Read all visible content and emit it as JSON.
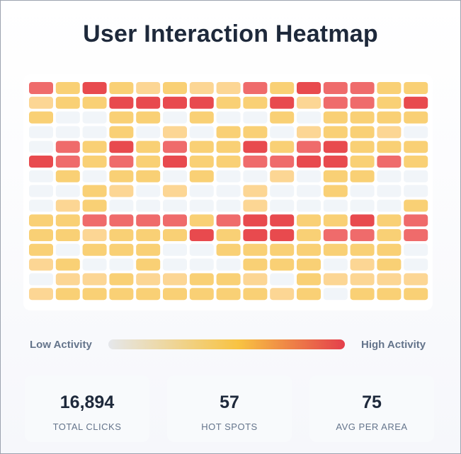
{
  "title": "User Interaction Heatmap",
  "colors": {
    "empty": "#f1f5f9",
    "low": "#fcd694",
    "mid": "#f9d075",
    "high": "#ef6b6b",
    "max": "#e84a4e",
    "legend_start": "#e5e7eb",
    "legend_mid": "#f8c342",
    "legend_end": "#e43f4c"
  },
  "legend": {
    "low_label": "Low Activity",
    "high_label": "High Activity"
  },
  "stats": [
    {
      "value": "16,894",
      "label": "TOTAL CLICKS"
    },
    {
      "value": "57",
      "label": "HOT SPOTS"
    },
    {
      "value": "75",
      "label": "AVG PER AREA"
    }
  ],
  "chart_data": {
    "type": "heatmap",
    "title": "User Interaction Heatmap",
    "rows": 15,
    "cols": 15,
    "scale": "0 = none, 1 = low, 2 = medium, 3 = high, 4 = very high",
    "values": [
      [
        3,
        2,
        4,
        2,
        1,
        2,
        1,
        1,
        3,
        2,
        4,
        3,
        3,
        2,
        2
      ],
      [
        1,
        2,
        2,
        4,
        4,
        4,
        4,
        2,
        2,
        4,
        1,
        3,
        3,
        2,
        4
      ],
      [
        2,
        0,
        0,
        2,
        2,
        0,
        2,
        0,
        0,
        2,
        0,
        2,
        2,
        2,
        2
      ],
      [
        0,
        0,
        0,
        2,
        0,
        1,
        0,
        2,
        2,
        0,
        1,
        2,
        2,
        1,
        0
      ],
      [
        0,
        3,
        2,
        4,
        2,
        3,
        2,
        2,
        4,
        2,
        3,
        4,
        2,
        2,
        2
      ],
      [
        4,
        3,
        2,
        3,
        2,
        4,
        2,
        2,
        3,
        3,
        4,
        4,
        2,
        3,
        2
      ],
      [
        0,
        2,
        0,
        2,
        2,
        0,
        2,
        0,
        0,
        1,
        0,
        2,
        2,
        0,
        0
      ],
      [
        0,
        0,
        2,
        1,
        0,
        1,
        0,
        0,
        1,
        0,
        0,
        2,
        0,
        0,
        0
      ],
      [
        0,
        1,
        2,
        0,
        0,
        0,
        0,
        0,
        1,
        0,
        0,
        0,
        0,
        0,
        2
      ],
      [
        2,
        2,
        3,
        3,
        3,
        3,
        2,
        3,
        4,
        4,
        2,
        2,
        4,
        2,
        3
      ],
      [
        2,
        2,
        1,
        2,
        2,
        2,
        4,
        2,
        4,
        4,
        2,
        3,
        3,
        2,
        3
      ],
      [
        2,
        0,
        2,
        2,
        2,
        0,
        0,
        2,
        2,
        2,
        2,
        2,
        2,
        2,
        0
      ],
      [
        1,
        2,
        0,
        0,
        2,
        0,
        0,
        0,
        2,
        2,
        2,
        0,
        1,
        2,
        0
      ],
      [
        0,
        1,
        1,
        2,
        1,
        1,
        2,
        2,
        1,
        0,
        2,
        1,
        1,
        1,
        1
      ],
      [
        1,
        2,
        2,
        2,
        2,
        2,
        2,
        2,
        2,
        1,
        2,
        0,
        2,
        2,
        2
      ]
    ]
  }
}
